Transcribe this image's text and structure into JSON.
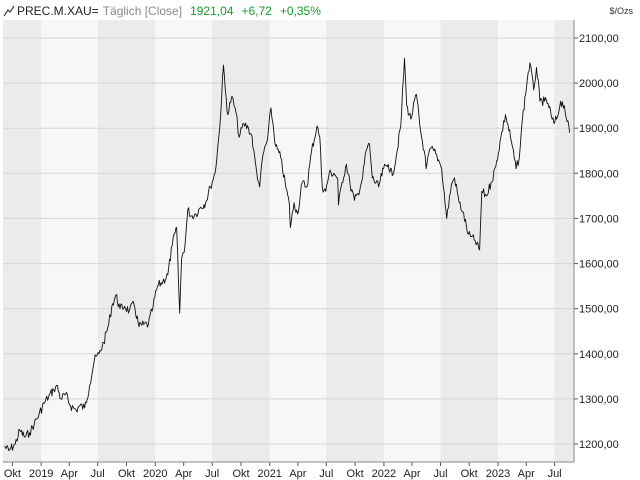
{
  "header": {
    "symbol": "PREC.M.XAU=",
    "mode": "Täglich [Close]",
    "last": "1921,04",
    "change": "+6,72",
    "change_pct": "+0,35%",
    "icon": "chart-line-icon",
    "accent_color": "#1d9a2c"
  },
  "chart_data": {
    "type": "line",
    "ylabel": "$/Ozs",
    "ylim": [
      1160,
      2140
    ],
    "yticks": [
      1200,
      1300,
      1400,
      1500,
      1600,
      1700,
      1800,
      1900,
      2000,
      2100
    ],
    "ytick_labels": [
      "1200,00",
      "1300,00",
      "1400,00",
      "1500,00",
      "1600,00",
      "1700,00",
      "1800,00",
      "1900,00",
      "2000,00",
      "2100,00"
    ],
    "xlim": [
      "2018-09-01",
      "2023-09-01"
    ],
    "xticks": [
      "2018-10-01",
      "2019-01-01",
      "2019-04-01",
      "2019-07-01",
      "2019-10-01",
      "2020-01-01",
      "2020-04-01",
      "2020-07-01",
      "2020-10-01",
      "2021-01-01",
      "2021-04-01",
      "2021-07-01",
      "2021-10-01",
      "2022-01-01",
      "2022-04-01",
      "2022-07-01",
      "2022-10-01",
      "2023-01-01",
      "2023-04-01",
      "2023-07-01"
    ],
    "xtick_labels": [
      "Okt",
      "2019",
      "Apr",
      "Jul",
      "Okt",
      "2020",
      "Apr",
      "Jul",
      "Okt",
      "2021",
      "Apr",
      "Jul",
      "Okt",
      "2022",
      "Apr",
      "Jul",
      "Okt",
      "2023",
      "Apr",
      "Jul"
    ],
    "grid": true,
    "line_color": "#111111",
    "series": [
      {
        "x": [
          "2018-09-05",
          "2018-09-20",
          "2018-10-10",
          "2018-10-25",
          "2018-11-10",
          "2018-11-25",
          "2018-12-10",
          "2018-12-25",
          "2019-01-10",
          "2019-01-25",
          "2019-02-10",
          "2019-02-20",
          "2019-03-05",
          "2019-03-20",
          "2019-04-05",
          "2019-04-23",
          "2019-05-05",
          "2019-05-20",
          "2019-06-05",
          "2019-06-20",
          "2019-07-05",
          "2019-07-20",
          "2019-08-05",
          "2019-08-15",
          "2019-08-28",
          "2019-09-10",
          "2019-09-25",
          "2019-10-10",
          "2019-10-25",
          "2019-11-10",
          "2019-11-25",
          "2019-12-10",
          "2019-12-25",
          "2020-01-08",
          "2020-01-25",
          "2020-02-10",
          "2020-02-24",
          "2020-03-05",
          "2020-03-09",
          "2020-03-19",
          "2020-03-25",
          "2020-04-05",
          "2020-04-14",
          "2020-04-25",
          "2020-05-10",
          "2020-05-25",
          "2020-06-10",
          "2020-06-25",
          "2020-07-10",
          "2020-07-25",
          "2020-08-06",
          "2020-08-12",
          "2020-08-20",
          "2020-09-01",
          "2020-09-15",
          "2020-09-25",
          "2020-10-10",
          "2020-10-25",
          "2020-11-06",
          "2020-11-09",
          "2020-11-20",
          "2020-11-30",
          "2020-12-10",
          "2020-12-25",
          "2021-01-05",
          "2021-01-20",
          "2021-02-05",
          "2021-02-20",
          "2021-03-05",
          "2021-03-08",
          "2021-03-20",
          "2021-03-31",
          "2021-04-15",
          "2021-04-30",
          "2021-05-15",
          "2021-06-01",
          "2021-06-10",
          "2021-06-18",
          "2021-06-29",
          "2021-07-10",
          "2021-07-25",
          "2021-08-06",
          "2021-08-09",
          "2021-08-20",
          "2021-09-03",
          "2021-09-15",
          "2021-09-29",
          "2021-10-10",
          "2021-10-25",
          "2021-11-05",
          "2021-11-16",
          "2021-11-25",
          "2021-12-15",
          "2021-12-31",
          "2022-01-15",
          "2022-01-28",
          "2022-02-10",
          "2022-02-24",
          "2022-03-08",
          "2022-03-15",
          "2022-03-28",
          "2022-04-15",
          "2022-04-28",
          "2022-05-10",
          "2022-05-16",
          "2022-05-30",
          "2022-06-10",
          "2022-06-25",
          "2022-07-05",
          "2022-07-21",
          "2022-08-05",
          "2022-08-15",
          "2022-08-30",
          "2022-09-10",
          "2022-09-28",
          "2022-10-05",
          "2022-10-20",
          "2022-11-03",
          "2022-11-10",
          "2022-11-25",
          "2022-12-10",
          "2022-12-25",
          "2023-01-10",
          "2023-01-25",
          "2023-02-10",
          "2023-02-28",
          "2023-03-10",
          "2023-03-20",
          "2023-04-05",
          "2023-04-13",
          "2023-04-25",
          "2023-05-04",
          "2023-05-15",
          "2023-05-30",
          "2023-06-10",
          "2023-06-23",
          "2023-06-29",
          "2023-07-10",
          "2023-07-20",
          "2023-08-01",
          "2023-08-10",
          "2023-08-18"
        ],
        "y": [
          1195,
          1185,
          1200,
          1230,
          1215,
          1225,
          1245,
          1265,
          1290,
          1305,
          1320,
          1330,
          1300,
          1310,
          1285,
          1275,
          1285,
          1280,
          1330,
          1385,
          1400,
          1425,
          1465,
          1505,
          1530,
          1500,
          1505,
          1495,
          1510,
          1460,
          1465,
          1465,
          1505,
          1550,
          1560,
          1575,
          1640,
          1670,
          1680,
          1490,
          1610,
          1640,
          1720,
          1705,
          1710,
          1725,
          1735,
          1770,
          1800,
          1900,
          2040,
          1985,
          1930,
          1970,
          1935,
          1880,
          1910,
          1900,
          1880,
          1855,
          1805,
          1770,
          1840,
          1875,
          1945,
          1860,
          1835,
          1775,
          1730,
          1680,
          1735,
          1710,
          1780,
          1770,
          1850,
          1905,
          1880,
          1770,
          1760,
          1800,
          1800,
          1790,
          1730,
          1780,
          1820,
          1775,
          1740,
          1755,
          1790,
          1850,
          1865,
          1790,
          1770,
          1810,
          1820,
          1795,
          1840,
          1905,
          2055,
          1950,
          1920,
          1975,
          1895,
          1850,
          1810,
          1855,
          1850,
          1830,
          1810,
          1700,
          1775,
          1790,
          1735,
          1715,
          1665,
          1660,
          1650,
          1630,
          1760,
          1750,
          1780,
          1815,
          1880,
          1930,
          1880,
          1810,
          1835,
          1920,
          2010,
          2045,
          1985,
          2035,
          1960,
          1960,
          1955,
          1920,
          1910,
          1925,
          1960,
          1950,
          1915,
          1890
        ]
      }
    ]
  }
}
